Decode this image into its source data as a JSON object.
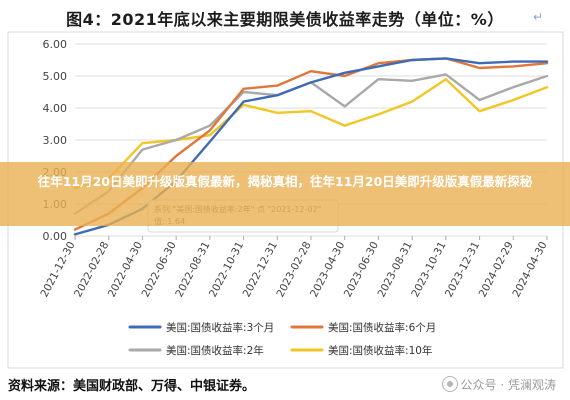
{
  "title": "图4：2021年底以来主要期限美债收益率走势（单位：%）",
  "overlay_headline": "往年11月20日美即升级版真假最新，揭秘真相，往年11月20日美即升级版真假最新探秘",
  "source": "资料来源：美国财政部、万得、中银证券。",
  "watermark": "公众号 · 凭澜观涛",
  "icons": {
    "title_icon": "arrow-icon",
    "watermark_icon": "wechat-icon"
  },
  "tooltip": {
    "line1": "系列 \"美国:国债收益率:2年\" 点 \"2021-12-02\"",
    "line2": "值: 1.64"
  },
  "colors": {
    "m3": "#3f6bb5",
    "m6": "#e0763c",
    "y2": "#a9a9a9",
    "y10": "#f2c624",
    "grid": "#dcdcdc",
    "axis_text": "#444444"
  },
  "chart_data": {
    "type": "line",
    "title": "图4：2021年底以来主要期限美债收益率走势（单位：%）",
    "xlabel": "",
    "ylabel": "",
    "ylim": [
      0,
      6
    ],
    "yticks": [
      "0.00",
      "1.00",
      "2.00",
      "3.00",
      "4.00",
      "5.00",
      "6.00"
    ],
    "grid": "horizontal",
    "legend_position": "bottom",
    "x": [
      "2021-12-30",
      "2022-02-28",
      "2022-04-30",
      "2022-06-30",
      "2022-08-31",
      "2022-10-31",
      "2022-12-31",
      "2023-02-28",
      "2023-04-30",
      "2023-06-30",
      "2023-08-31",
      "2023-10-31",
      "2023-12-31",
      "2024-02-29",
      "2024-04-30"
    ],
    "series": [
      {
        "name": "美国:国债收益率:3个月",
        "values": [
          0.05,
          0.35,
          0.85,
          1.72,
          2.95,
          4.2,
          4.4,
          4.8,
          5.1,
          5.3,
          5.5,
          5.55,
          5.4,
          5.45,
          5.45
        ]
      },
      {
        "name": "美国:国债收益率:6个月",
        "values": [
          0.2,
          0.7,
          1.5,
          2.5,
          3.3,
          4.6,
          4.7,
          5.15,
          5.0,
          5.4,
          5.5,
          5.55,
          5.25,
          5.3,
          5.4
        ]
      },
      {
        "name": "美国:国债收益率:2年",
        "values": [
          0.7,
          1.4,
          2.7,
          3.0,
          3.45,
          4.5,
          4.4,
          4.8,
          4.05,
          4.9,
          4.85,
          5.05,
          4.25,
          4.65,
          5.0
        ]
      },
      {
        "name": "美国:国债收益率:10年",
        "values": [
          1.5,
          1.8,
          2.9,
          3.0,
          3.15,
          4.1,
          3.85,
          3.9,
          3.45,
          3.8,
          4.2,
          4.9,
          3.9,
          4.25,
          4.65
        ]
      }
    ]
  }
}
